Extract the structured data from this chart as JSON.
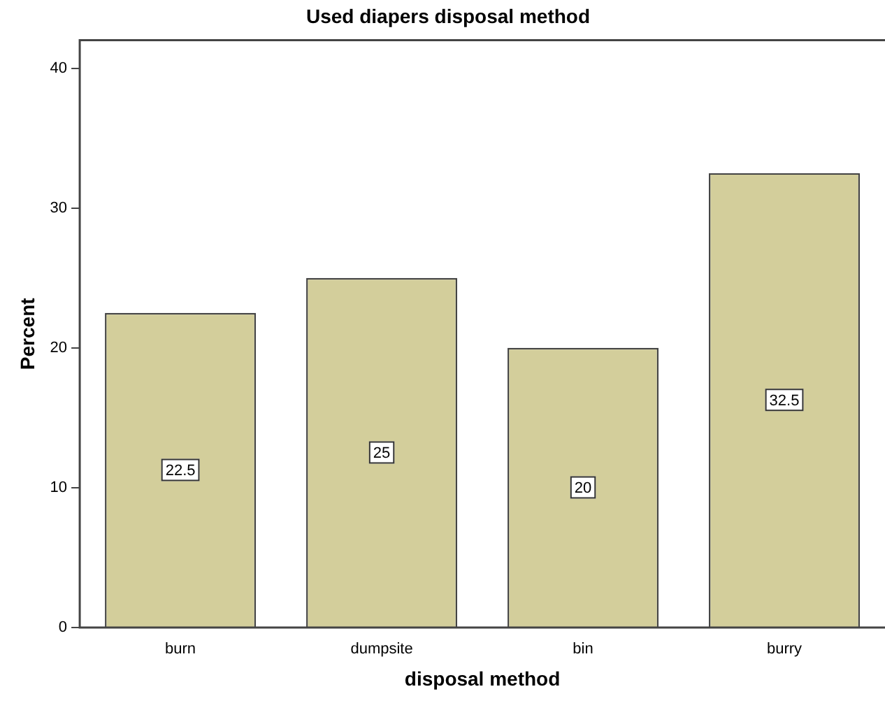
{
  "chart_data": {
    "type": "bar",
    "title": "Used diapers disposal method",
    "xlabel": "disposal method",
    "ylabel": "Percent",
    "categories": [
      "burn",
      "dumpsite",
      "bin",
      "burry"
    ],
    "values": [
      22.5,
      25,
      20,
      32.5
    ],
    "color": "#d3ce9b",
    "ylim": [
      0,
      42
    ],
    "yticks": [
      0,
      10,
      20,
      30,
      40
    ],
    "grid": false,
    "legend": false,
    "data_labels": true
  }
}
